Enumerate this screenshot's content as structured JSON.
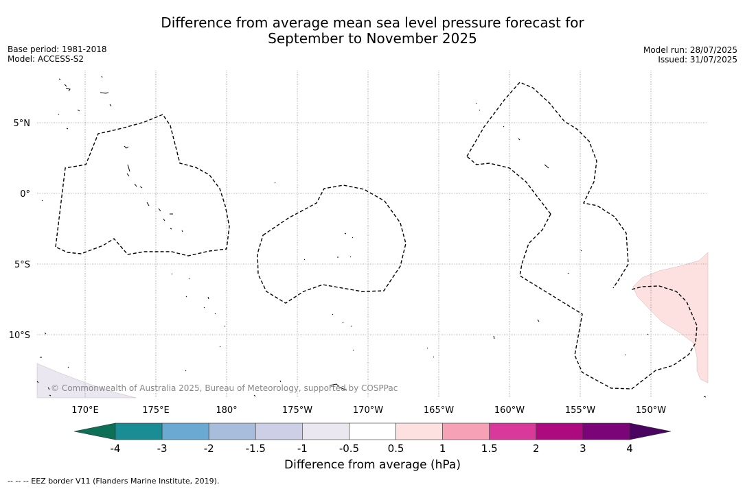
{
  "title": {
    "line1": "Difference from average mean sea level pressure forecast for",
    "line2": "September to November 2025"
  },
  "meta_left": {
    "base_period": "Base period: 1981-2018",
    "model": "Model: ACCESS-S2"
  },
  "meta_right": {
    "model_run": "Model run: 28/07/2025",
    "issued": "Issued: 31/07/2025"
  },
  "map": {
    "lat_labels": [
      "5°N",
      "0°",
      "5°S",
      "10°S"
    ],
    "lon_labels": [
      "170°E",
      "175°E",
      "180°",
      "175°W",
      "170°W",
      "165°W",
      "160°W",
      "155°W",
      "150°W"
    ],
    "copyright": "© Commonwealth of Australia 2025, Bureau of Meteorology, supported by COSPPac",
    "shading": [
      {
        "region": "east",
        "category": "0.5 to 1"
      },
      {
        "region": "south-west",
        "category": "-1 to -0.5"
      }
    ]
  },
  "colorbar": {
    "ticks": [
      "-4",
      "-3",
      "-2",
      "-1.5",
      "-1",
      "-0.5",
      "0.5",
      "1",
      "1.5",
      "2",
      "3",
      "4"
    ],
    "colors": [
      "#1a8c94",
      "#6aaad2",
      "#a8bcdc",
      "#cccfe5",
      "#eae7f0",
      "#ffffff",
      "#fde1e1",
      "#f6a1b5",
      "#d8399a",
      "#ad0a80",
      "#7a0478"
    ],
    "extend_low_color": "#0e6f57",
    "extend_high_color": "#4a0560",
    "label": "Difference from average (hPa)"
  },
  "footer": "-- -- -- EEZ border V11 (Flanders Marine Institute, 2019)."
}
